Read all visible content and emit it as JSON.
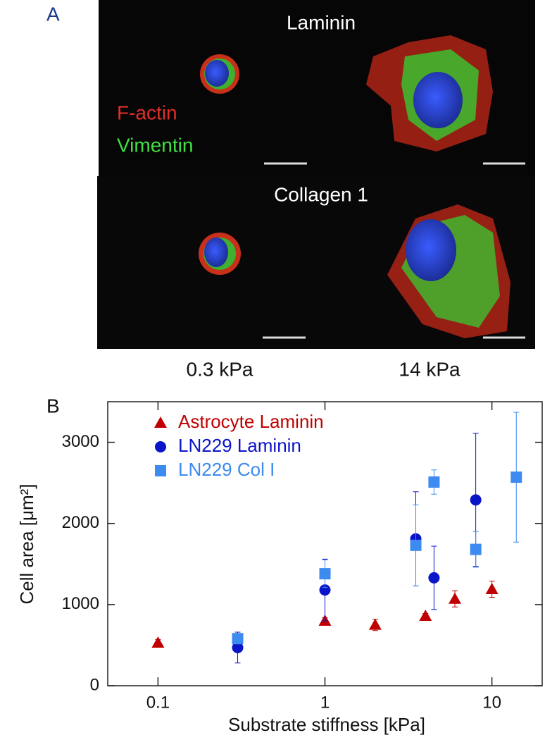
{
  "panel_a": {
    "label": "A",
    "row1_title": "Laminin",
    "stain1": "F-actin",
    "stain2": "Vimentin",
    "row2_title": "Collagen 1",
    "col1": "0.3 kPa",
    "col2": "14 kPa"
  },
  "chart_data": {
    "type": "scatter",
    "label": "B",
    "x_label": "Substrate stiffness [kPa]",
    "y_label": "Cell area [μm²]",
    "log_x": true,
    "xlim": [
      0.05,
      20
    ],
    "xticks": [
      0.1,
      1,
      10
    ],
    "ylim": [
      0,
      3500
    ],
    "yticks": [
      0,
      1000,
      2000,
      3000
    ],
    "legend": "upper left",
    "series": [
      {
        "name": "Astrocyte Laminin",
        "color": "#c00000",
        "marker": "triangle",
        "x": [
          0.1,
          1,
          2,
          4,
          6,
          10
        ],
        "values": [
          530,
          800,
          750,
          860,
          1070,
          1190
        ],
        "errors": [
          40,
          40,
          70,
          30,
          100,
          100
        ]
      },
      {
        "name": "LN229 Laminin",
        "color": "#0a14c8",
        "marker": "circle",
        "x": [
          0.3,
          1,
          3.5,
          4.5,
          8
        ],
        "values": [
          470,
          1180,
          1810,
          1330,
          2290
        ],
        "errors": [
          190,
          380,
          580,
          390,
          820
        ]
      },
      {
        "name": "LN229 Col I",
        "color": "#3d8af0",
        "marker": "square",
        "x": [
          0.3,
          1,
          3.5,
          4.5,
          8,
          14
        ],
        "values": [
          580,
          1380,
          1730,
          2510,
          1680,
          2570
        ],
        "errors": [
          50,
          170,
          500,
          150,
          220,
          800
        ]
      }
    ]
  }
}
